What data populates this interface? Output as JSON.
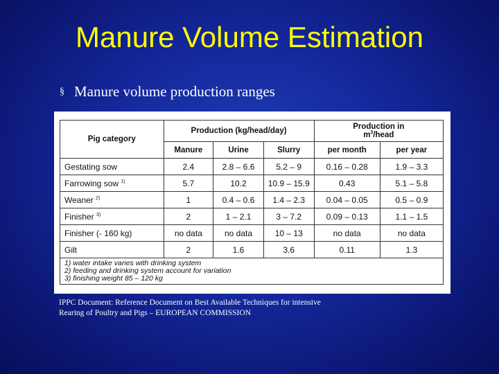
{
  "slide": {
    "title": "Manure Volume Estimation",
    "bullet_marker": "§",
    "bullet_text": "Manure volume production ranges",
    "source_line1": "IPPC Document: Reference Document on Best Available Techniques for intensive",
    "source_line2": "Rearing of Poultry and Pigs – EUROPEAN COMMISSION"
  },
  "table": {
    "h_category": "Pig category",
    "h_production": "Production (kg/head/day)",
    "h_production_m3": "Production in",
    "h_production_m3_unit_pre": "m",
    "h_production_m3_unit_sup": "3",
    "h_production_m3_unit_post": "/head",
    "h_manure": "Manure",
    "h_urine": "Urine",
    "h_slurry": "Slurry",
    "h_per_month": "per month",
    "h_per_year": "per year",
    "rows": [
      {
        "cat": "Gestating sow",
        "sup": "",
        "manure": "2.4",
        "urine": "2.8 – 6.6",
        "slurry": "5.2 – 9",
        "month": "0.16 – 0.28",
        "year": "1.9 – 3.3"
      },
      {
        "cat": "Farrowing sow",
        "sup": "1)",
        "manure": "5.7",
        "urine": "10.2",
        "slurry": "10.9 – 15.9",
        "month": "0.43",
        "year": "5.1 – 5.8"
      },
      {
        "cat": "Weaner",
        "sup": "2)",
        "manure": "1",
        "urine": "0.4 – 0.6",
        "slurry": "1.4 – 2.3",
        "month": "0.04 – 0.05",
        "year": "0.5 – 0.9"
      },
      {
        "cat": "Finisher",
        "sup": "3)",
        "manure": "2",
        "urine": "1 – 2.1",
        "slurry": "3 – 7.2",
        "month": "0.09 – 0.13",
        "year": "1.1 – 1.5"
      },
      {
        "cat": "Finisher (- 160 kg)",
        "sup": "",
        "manure": "no data",
        "urine": "no data",
        "slurry": "10 – 13",
        "month": "no data",
        "year": "no data"
      },
      {
        "cat": "Gilt",
        "sup": "",
        "manure": "2",
        "urine": "1.6",
        "slurry": "3.6",
        "month": "0.11",
        "year": "1.3"
      }
    ],
    "notes": [
      "1)  water intake varies with drinking system",
      "2)  feeding and drinking system account for variation",
      "3)  finishing weight 85 – 120 kg"
    ]
  }
}
